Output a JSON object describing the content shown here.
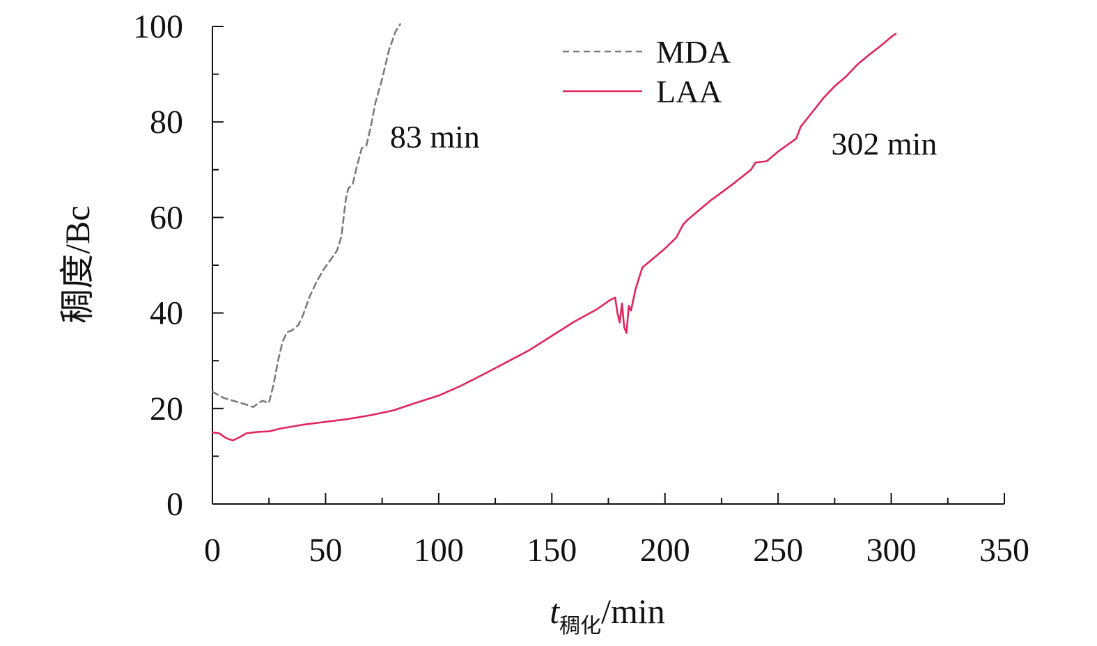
{
  "chart_data": {
    "type": "line",
    "xlabel": "t",
    "xlabel_subscript": "稠化",
    "xlabel_unit": "/min",
    "ylabel": "稠度/Bc",
    "xlim": [
      0,
      350
    ],
    "ylim": [
      0,
      100
    ],
    "x_ticks": [
      0,
      50,
      100,
      150,
      200,
      250,
      300,
      350
    ],
    "y_ticks": [
      0,
      20,
      40,
      60,
      80,
      100
    ],
    "x_tick_labels": [
      "0",
      "50",
      "100",
      "150",
      "200",
      "250",
      "300",
      "350"
    ],
    "y_tick_labels": [
      "0",
      "20",
      "40",
      "60",
      "80",
      "100"
    ],
    "grid": false,
    "legend_position": "top-right",
    "colors": {
      "MDA": "#7a7a7a",
      "LAA": "#e0245e",
      "axis": "#111111"
    },
    "series": [
      {
        "name": "MDA",
        "style": "dashed",
        "x": [
          0,
          5,
          10,
          15,
          18,
          20,
          22,
          25,
          27,
          29,
          31,
          33,
          35,
          38,
          40,
          43,
          46,
          49,
          52,
          55,
          57,
          58,
          59,
          60,
          62,
          64,
          66,
          68,
          70,
          72,
          75,
          78,
          81,
          83
        ],
        "y": [
          23.5,
          22.2,
          21.5,
          20.8,
          20.3,
          21.0,
          21.6,
          21.2,
          25.0,
          30.0,
          34.0,
          36.0,
          36.3,
          37.5,
          39.5,
          43.5,
          46.5,
          49.0,
          51.0,
          53.0,
          56.0,
          60.0,
          64.0,
          66.0,
          67.0,
          71.0,
          74.5,
          75.0,
          79.0,
          84.0,
          89.0,
          95.0,
          99.0,
          100.5
        ]
      },
      {
        "name": "LAA",
        "style": "solid",
        "x": [
          0,
          3,
          6,
          9,
          12,
          15,
          20,
          25,
          30,
          35,
          40,
          50,
          60,
          70,
          80,
          90,
          100,
          110,
          120,
          130,
          140,
          150,
          160,
          170,
          176,
          178,
          179,
          180,
          181,
          182,
          183,
          184,
          185,
          187,
          190,
          195,
          200,
          205,
          208,
          210,
          220,
          230,
          238,
          240,
          245,
          250,
          255,
          258,
          260,
          265,
          270,
          275,
          280,
          285,
          290,
          295,
          300,
          302
        ],
        "y": [
          15.0,
          14.8,
          13.8,
          13.3,
          14.0,
          14.8,
          15.1,
          15.2,
          15.8,
          16.2,
          16.6,
          17.2,
          17.8,
          18.6,
          19.6,
          21.2,
          22.7,
          24.8,
          27.2,
          29.7,
          32.2,
          35.2,
          38.2,
          40.8,
          42.8,
          43.2,
          40.0,
          38.0,
          42.0,
          37.0,
          35.8,
          41.5,
          40.5,
          45.0,
          49.5,
          51.5,
          53.5,
          55.8,
          58.5,
          59.5,
          63.5,
          67.0,
          70.0,
          71.5,
          71.8,
          73.8,
          75.5,
          76.5,
          79.0,
          82.0,
          85.0,
          87.5,
          89.5,
          92.0,
          94.0,
          95.8,
          97.8,
          98.5
        ]
      }
    ],
    "annotations": [
      {
        "text": "83 min",
        "x": 100,
        "y": 77
      },
      {
        "text": "302 min",
        "x": 295,
        "y": 75.5
      }
    ]
  }
}
